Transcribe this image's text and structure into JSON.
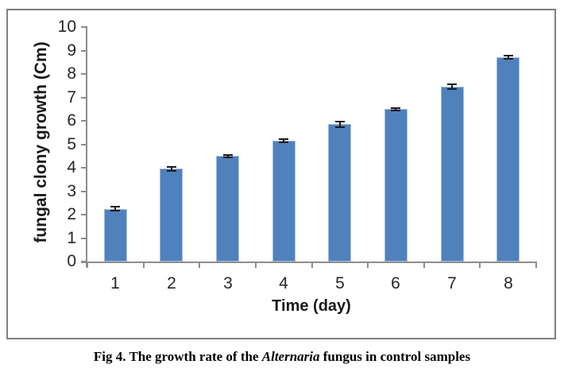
{
  "figure": {
    "caption": {
      "prefix": "Fig 4. The growth rate of the ",
      "italic": "Alternaria",
      "suffix": " fungus in control samples"
    }
  },
  "chart_data": {
    "type": "bar",
    "title": "",
    "xlabel": "Time (day)",
    "ylabel": "fungal clony growth (Cm)",
    "categories": [
      "1",
      "2",
      "3",
      "4",
      "5",
      "6",
      "7",
      "8"
    ],
    "values": [
      2.25,
      3.95,
      4.5,
      5.15,
      5.85,
      6.5,
      7.45,
      8.7
    ],
    "errors": [
      0.08,
      0.1,
      0.05,
      0.06,
      0.12,
      0.05,
      0.1,
      0.07
    ],
    "ylim": [
      0,
      10
    ],
    "y_ticks": [
      0,
      1,
      2,
      3,
      4,
      5,
      6,
      7,
      8,
      9,
      10
    ],
    "grid": false,
    "legend": false,
    "bar_color": "#4F81BD",
    "bar_edge_color": "#A3BEE0",
    "error_color": "#1a1a1a",
    "axis_color": "#8C8C8C",
    "frame_color": "#7F7F7F",
    "tick_label_color": "#262626"
  }
}
